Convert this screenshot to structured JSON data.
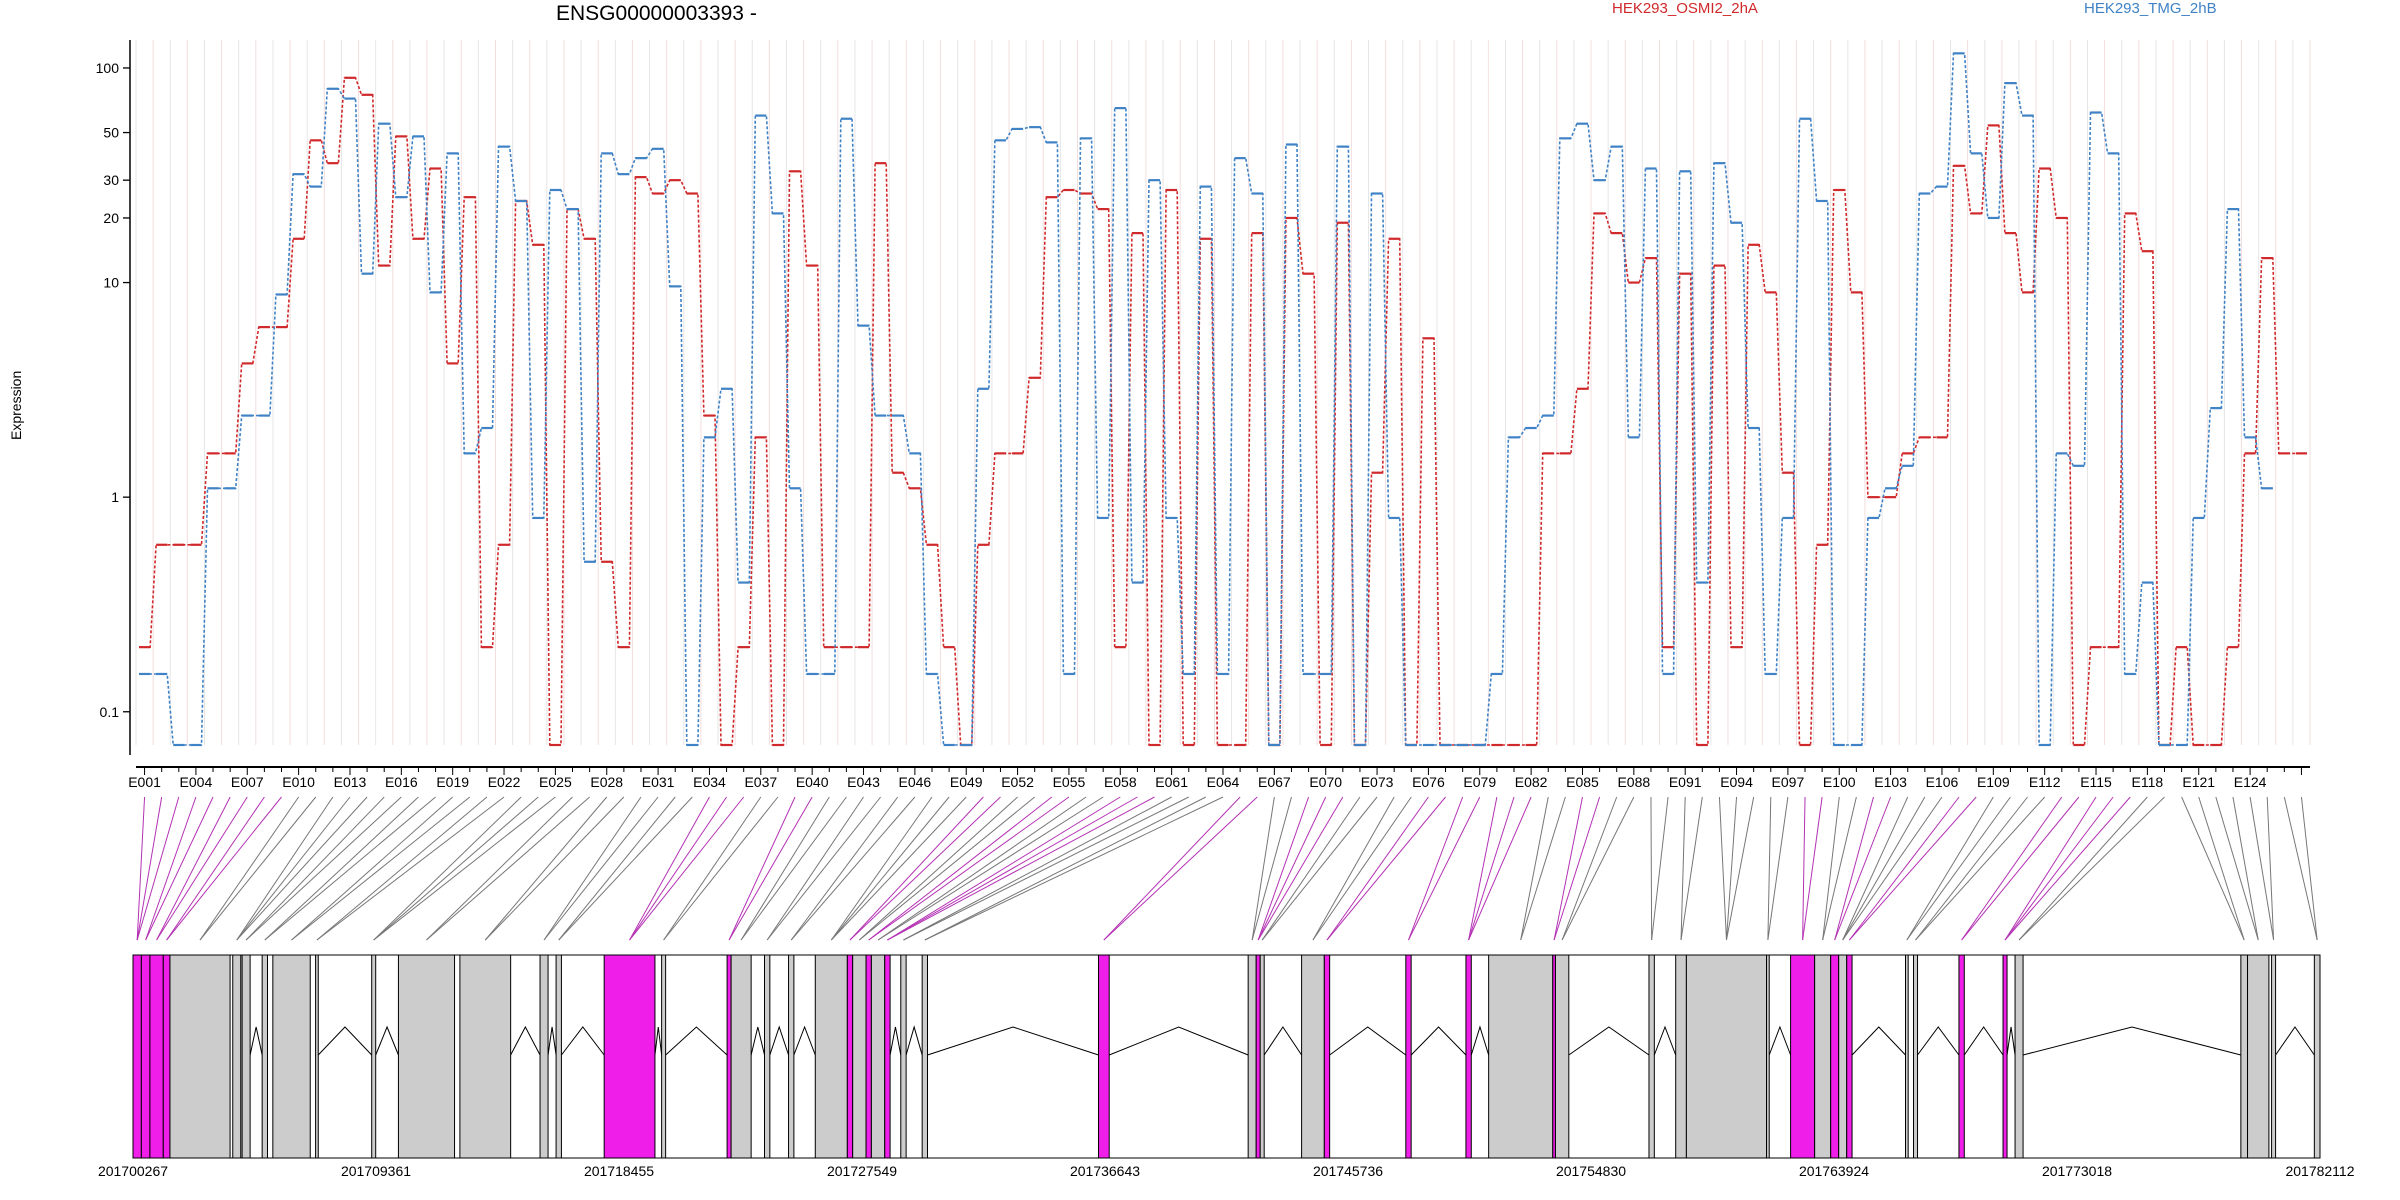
{
  "chart_data": {
    "type": "line",
    "title": "ENSG00000003393 -",
    "ylabel": "Expression",
    "xlabel": "",
    "y_scale": "log",
    "y_ticks": [
      0.1,
      1,
      10,
      20,
      30,
      50,
      100
    ],
    "ylim": [
      0.07,
      135
    ],
    "grid": "vertical per exon",
    "legend_placement": "top",
    "series": [
      {
        "name": "HEK293_OSMI2_2hA",
        "color": "#d0292b",
        "values": [
          0.2,
          0.6,
          0.6,
          0.6,
          1.6,
          1.6,
          4.2,
          6.2,
          6.2,
          16,
          46,
          36,
          90,
          75,
          12,
          48,
          16,
          34,
          4.2,
          25,
          0.2,
          0.6,
          24,
          15,
          0.07,
          22,
          16,
          0.5,
          0.2,
          31,
          26,
          30,
          26,
          2.4,
          0.07,
          0.2,
          1.9,
          0.07,
          33,
          12,
          0.2,
          0.2,
          0.2,
          36,
          1.3,
          1.1,
          0.6,
          0.2,
          0.07,
          0.6,
          1.6,
          1.6,
          3.6,
          25,
          27,
          26,
          22,
          0.2,
          17,
          0.07,
          27,
          0.07,
          16,
          0.07,
          0.07,
          17,
          0.07,
          20,
          11,
          0.07,
          19,
          0.07,
          1.3,
          16,
          0.07,
          5.5,
          0.07,
          0.07,
          0.07,
          0.07,
          0.07,
          0.07,
          1.6,
          1.6,
          3.2,
          21,
          17,
          10,
          13,
          0.2,
          11,
          0.07,
          12,
          0.2,
          15,
          9,
          1.3,
          0.07,
          0.6,
          27,
          9,
          1,
          1,
          1.6,
          1.9,
          1.9,
          35,
          21,
          54,
          17,
          9,
          34,
          20,
          0.07,
          0.2,
          0.2,
          21,
          14,
          0.07,
          0.2,
          0.07,
          0.07,
          0.2,
          1.6,
          13,
          1.6,
          1.6
        ]
      },
      {
        "name": "HEK293_TMG_2hB",
        "color": "#3f82c5",
        "values": [
          0.15,
          0.15,
          0.07,
          0.07,
          1.1,
          1.1,
          2.4,
          2.4,
          8.8,
          32,
          28,
          80,
          72,
          11,
          55,
          25,
          48,
          9,
          40,
          1.6,
          2.1,
          43,
          24,
          0.8,
          27,
          22,
          0.5,
          40,
          32,
          38,
          42,
          9.6,
          0.07,
          1.9,
          3.2,
          0.4,
          60,
          21,
          1.1,
          0.15,
          0.15,
          58,
          6.3,
          2.4,
          2.4,
          1.6,
          0.15,
          0.07,
          0.07,
          3.2,
          46,
          52,
          53,
          45,
          0.15,
          47,
          0.8,
          65,
          0.4,
          30,
          0.8,
          0.15,
          28,
          0.15,
          38,
          26,
          0.07,
          44,
          0.15,
          0.15,
          43,
          0.07,
          26,
          0.8,
          0.07,
          0.07,
          0.07,
          0.07,
          0.07,
          0.15,
          1.9,
          2.1,
          2.4,
          47,
          55,
          30,
          43,
          1.9,
          34,
          0.15,
          33,
          0.4,
          36,
          19,
          2.1,
          0.15,
          0.8,
          58,
          24,
          0.07,
          0.07,
          0.8,
          1.1,
          1.4,
          26,
          28,
          117,
          40,
          20,
          85,
          60,
          0.07,
          1.6,
          1.4,
          62,
          40,
          0.15,
          0.4,
          0.07,
          0.07,
          0.8,
          2.6,
          22,
          1.9,
          1.1
        ]
      }
    ],
    "tick_labels": [
      "E001",
      "E004",
      "E007",
      "E010",
      "E013",
      "E016",
      "E019",
      "E022",
      "E025",
      "E028",
      "E031",
      "E034",
      "E037",
      "E040",
      "E043",
      "E046",
      "E049",
      "E052",
      "E055",
      "E058",
      "E061",
      "E064",
      "E067",
      "E070",
      "E073",
      "E076",
      "E079",
      "E082",
      "E085",
      "E088",
      "E091",
      "E094",
      "E097",
      "E100",
      "E103",
      "E106",
      "E109",
      "E112",
      "E115",
      "E118",
      "E121",
      "E124"
    ],
    "gene_model": {
      "genomic_range": [
        201700267,
        201782112
      ],
      "coordinate_labels": [
        "201700267",
        "201709361",
        "201718455",
        "201727549",
        "201736643",
        "201745736",
        "201754830",
        "201763924",
        "201773018",
        "201782112"
      ],
      "feature_colors": {
        "highlighted": "#ef1ee8",
        "exon": "#cccccc",
        "intron": "#000000"
      },
      "exon_blocks": [
        {
          "start": 201700267,
          "end": 201700580,
          "type": "highlighted"
        },
        {
          "start": 201700580,
          "end": 201700900,
          "type": "highlighted"
        },
        {
          "start": 201700900,
          "end": 201701400,
          "type": "highlighted"
        },
        {
          "start": 201701400,
          "end": 201701650,
          "type": "highlighted"
        },
        {
          "start": 201701650,
          "end": 201703900,
          "type": "exon"
        },
        {
          "start": 201704000,
          "end": 201704300,
          "type": "exon"
        },
        {
          "start": 201704350,
          "end": 201704650,
          "type": "exon"
        },
        {
          "start": 201705100,
          "end": 201705300,
          "type": "exon"
        },
        {
          "start": 201705500,
          "end": 201706900,
          "type": "exon"
        },
        {
          "start": 201707100,
          "end": 201707200,
          "type": "exon"
        },
        {
          "start": 201709200,
          "end": 201709350,
          "type": "exon"
        },
        {
          "start": 201710200,
          "end": 201712300,
          "type": "exon"
        },
        {
          "start": 201712500,
          "end": 201714400,
          "type": "exon"
        },
        {
          "start": 201715500,
          "end": 201715800,
          "type": "exon"
        },
        {
          "start": 201716100,
          "end": 201716300,
          "type": "exon"
        },
        {
          "start": 201717900,
          "end": 201719800,
          "type": "highlighted"
        },
        {
          "start": 201720050,
          "end": 201720200,
          "type": "exon"
        },
        {
          "start": 201722500,
          "end": 201722650,
          "type": "highlighted"
        },
        {
          "start": 201722650,
          "end": 201723400,
          "type": "exon"
        },
        {
          "start": 201723900,
          "end": 201724100,
          "type": "exon"
        },
        {
          "start": 201724800,
          "end": 201725000,
          "type": "exon"
        },
        {
          "start": 201725800,
          "end": 201727000,
          "type": "exon"
        },
        {
          "start": 201727000,
          "end": 201727200,
          "type": "highlighted"
        },
        {
          "start": 201727200,
          "end": 201727700,
          "type": "exon"
        },
        {
          "start": 201727700,
          "end": 201727900,
          "type": "highlighted"
        },
        {
          "start": 201727900,
          "end": 201728400,
          "type": "exon"
        },
        {
          "start": 201728400,
          "end": 201728600,
          "type": "highlighted"
        },
        {
          "start": 201729000,
          "end": 201729200,
          "type": "exon"
        },
        {
          "start": 201729800,
          "end": 201730000,
          "type": "exon"
        },
        {
          "start": 201736400,
          "end": 201736800,
          "type": "highlighted"
        },
        {
          "start": 201742000,
          "end": 201742300,
          "type": "exon"
        },
        {
          "start": 201742300,
          "end": 201742450,
          "type": "highlighted"
        },
        {
          "start": 201742450,
          "end": 201742600,
          "type": "exon"
        },
        {
          "start": 201744000,
          "end": 201744850,
          "type": "exon"
        },
        {
          "start": 201744850,
          "end": 201745050,
          "type": "highlighted"
        },
        {
          "start": 201747900,
          "end": 201748100,
          "type": "highlighted"
        },
        {
          "start": 201750150,
          "end": 201750350,
          "type": "highlighted"
        },
        {
          "start": 201751000,
          "end": 201753400,
          "type": "exon"
        },
        {
          "start": 201753400,
          "end": 201753500,
          "type": "highlighted"
        },
        {
          "start": 201753500,
          "end": 201754000,
          "type": "exon"
        },
        {
          "start": 201757000,
          "end": 201757200,
          "type": "exon"
        },
        {
          "start": 201758000,
          "end": 201758400,
          "type": "exon"
        },
        {
          "start": 201758400,
          "end": 201761400,
          "type": "exon"
        },
        {
          "start": 201761400,
          "end": 201761500,
          "type": "exon"
        },
        {
          "start": 201762300,
          "end": 201763200,
          "type": "highlighted"
        },
        {
          "start": 201763200,
          "end": 201763800,
          "type": "exon"
        },
        {
          "start": 201763800,
          "end": 201764100,
          "type": "highlighted"
        },
        {
          "start": 201764100,
          "end": 201764400,
          "type": "exon"
        },
        {
          "start": 201764400,
          "end": 201764600,
          "type": "highlighted"
        },
        {
          "start": 201766600,
          "end": 201766700,
          "type": "exon"
        },
        {
          "start": 201766900,
          "end": 201767050,
          "type": "exon"
        },
        {
          "start": 201768600,
          "end": 201768800,
          "type": "highlighted"
        },
        {
          "start": 201770250,
          "end": 201770400,
          "type": "highlighted"
        },
        {
          "start": 201770700,
          "end": 201771000,
          "type": "exon"
        },
        {
          "start": 201779150,
          "end": 201779400,
          "type": "exon"
        },
        {
          "start": 201779400,
          "end": 201780200,
          "type": "exon"
        },
        {
          "start": 201780300,
          "end": 201780450,
          "type": "exon"
        },
        {
          "start": 201781900,
          "end": 201782112,
          "type": "exon"
        }
      ]
    }
  },
  "legend": [
    "HEK293_OSMI2_2hA",
    "HEK293_TMG_2hB"
  ]
}
